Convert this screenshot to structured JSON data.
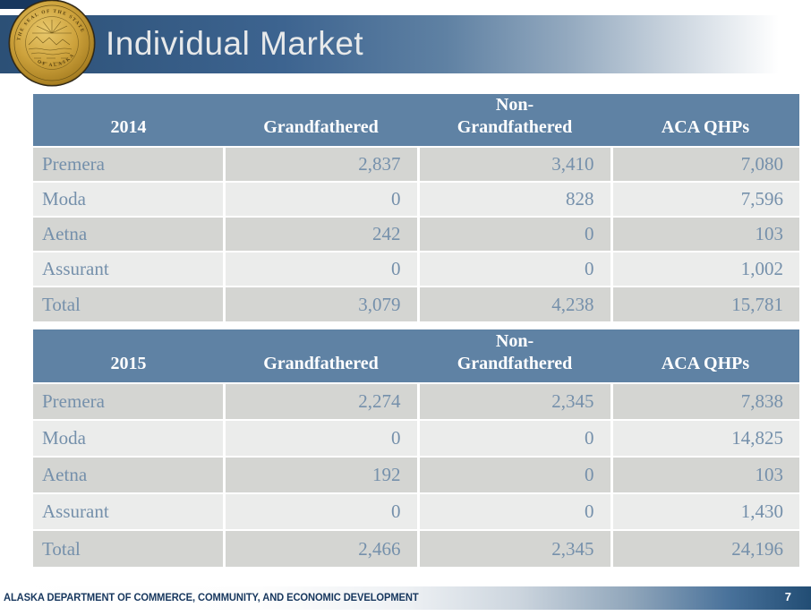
{
  "slide": {
    "title": "Individual Market",
    "footer": "ALASKA DEPARTMENT OF COMMERCE, COMMUNITY, AND ECONOMIC DEVELOPMENT",
    "page_number": "7"
  },
  "seal": {
    "name": "seal-of-the-state-of-alaska",
    "text_top": "THE SEAL OF THE STATE",
    "text_bottom": "OF ALASKA"
  },
  "colors": {
    "navy_tab": "#17375e",
    "banner_dark": "#2c5076",
    "banner_mid": "#3d6490",
    "title_text": "#e7e9ea",
    "table_header_bg": "#5f82a4",
    "header_text": "#ffffff",
    "row_odd_bg": "#d4d5d2",
    "row_even_bg": "#ebeceb",
    "table_text": "#7590ab",
    "footer_text": "#17375e",
    "footer_bar_dark": "#224d74",
    "seal_gold": "#cda23c"
  },
  "chart_data": [
    {
      "type": "table",
      "title": "Individual Market 2014",
      "year": "2014",
      "columns": [
        "Grandfathered",
        "Non-Grandfathered",
        "ACA QHPs"
      ],
      "rows": [
        {
          "label": "Premera",
          "values": [
            "2,837",
            "3,410",
            "7,080"
          ]
        },
        {
          "label": "Moda",
          "values": [
            "0",
            "828",
            "7,596"
          ]
        },
        {
          "label": "Aetna",
          "values": [
            "242",
            "0",
            "103"
          ]
        },
        {
          "label": "Assurant",
          "values": [
            "0",
            "0",
            "1,002"
          ]
        },
        {
          "label": "Total",
          "values": [
            "3,079",
            "4,238",
            "15,781"
          ]
        }
      ]
    },
    {
      "type": "table",
      "title": "Individual Market 2015",
      "year": "2015",
      "columns": [
        "Grandfathered",
        "Non-Grandfathered",
        "ACA QHPs"
      ],
      "rows": [
        {
          "label": "Premera",
          "values": [
            "2,274",
            "2,345",
            "7,838"
          ]
        },
        {
          "label": "Moda",
          "values": [
            "0",
            "0",
            "14,825"
          ]
        },
        {
          "label": "Aetna",
          "values": [
            "192",
            "0",
            "103"
          ]
        },
        {
          "label": "Assurant",
          "values": [
            "0",
            "0",
            "1,430"
          ]
        },
        {
          "label": "Total",
          "values": [
            "2,466",
            "2,345",
            "24,196"
          ]
        }
      ]
    }
  ]
}
